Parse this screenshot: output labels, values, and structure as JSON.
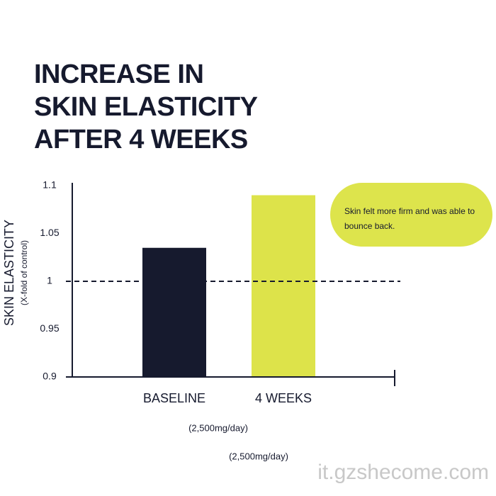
{
  "chart_data": {
    "type": "bar",
    "title": "INCREASE IN SKIN ELASTICITY AFTER 4 WEEKS",
    "y_label": "SKIN ELASTICITY",
    "y_sublabel": "(X-fold of control)",
    "categories": [
      "BASELINE",
      "4 WEEKS"
    ],
    "values": [
      1.035,
      1.09
    ],
    "colors": [
      "#161a2e",
      "#dde34a"
    ],
    "ylim": [
      0.9,
      1.1
    ],
    "yticks": [
      0.9,
      0.95,
      1,
      1.05,
      1.1
    ],
    "reference_line": 1,
    "annotation": "Skin felt more firm and was able to bounce back.",
    "dose_labels": [
      "(2,500mg/day)",
      "(2,500mg/day)"
    ],
    "watermark": "it.gzshecome.com"
  }
}
